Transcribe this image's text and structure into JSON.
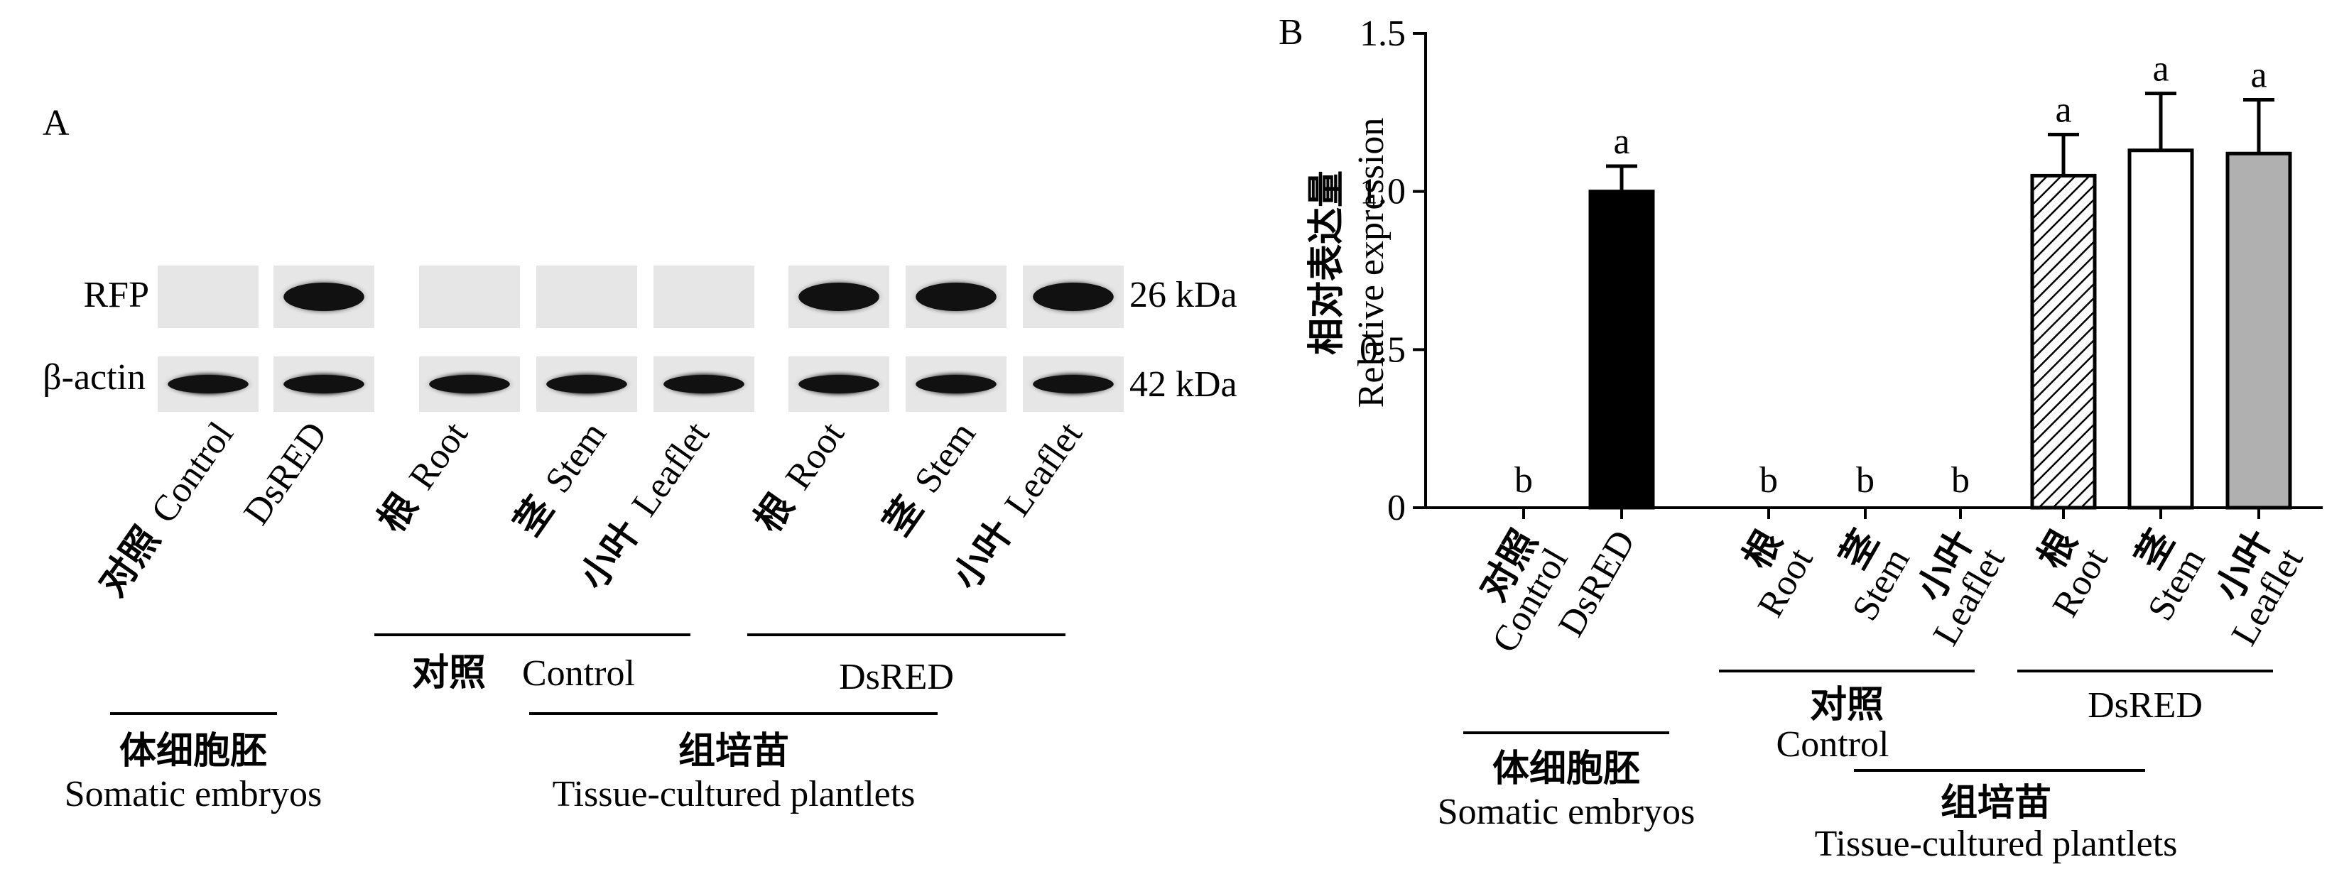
{
  "panel_a": {
    "label": "A",
    "row_labels": [
      "RFP",
      "β-actin"
    ],
    "kda_labels": [
      "26 kDa",
      "42 kDa"
    ],
    "lane_labels": [
      [
        "对照",
        "Control"
      ],
      [
        "DsRED"
      ],
      [
        "根",
        "Root"
      ],
      [
        "茎",
        "Stem"
      ],
      [
        "小叶",
        "Leaflet"
      ],
      [
        "根",
        "Root"
      ],
      [
        "茎",
        "Stem"
      ],
      [
        "小叶",
        "Leaflet"
      ]
    ],
    "band_intensity": {
      "RFP": [
        0,
        1,
        0,
        0,
        0,
        1,
        1,
        1
      ],
      "actin": [
        1,
        1,
        1,
        1,
        1,
        1,
        1,
        1
      ]
    },
    "group_control_cn": "对照",
    "group_control_en": "Control",
    "group_dsred": "DsRED",
    "somatic_cn": "体细胞胚",
    "somatic_en": "Somatic embryos",
    "tissue_cn": "组培苗",
    "tissue_en": "Tissue-cultured plantlets"
  },
  "panel_b": {
    "label": "B",
    "group_control_cn": "对照",
    "group_control_en": "Control",
    "group_dsred": "DsRED",
    "somatic_cn": "体细胞胚",
    "somatic_en": "Somatic embryos",
    "tissue_cn": "组培苗",
    "tissue_en": "Tissue-cultured plantlets"
  },
  "chart_data": {
    "type": "bar",
    "ylabel_cn": "相对表达量",
    "ylabel_en": "Relative expression",
    "ylim": [
      0,
      1.5
    ],
    "yticks": [
      "0",
      "0.5",
      "1.0",
      "1.5"
    ],
    "yticks_values": [
      0,
      0.5,
      1.0,
      1.5
    ],
    "categories": [
      [
        "对照",
        "Control"
      ],
      [
        "DsRED"
      ],
      [
        "根",
        "Root"
      ],
      [
        "茎",
        "Stem"
      ],
      [
        "小叶",
        "Leaflet"
      ],
      [
        "根",
        "Root"
      ],
      [
        "茎",
        "Stem"
      ],
      [
        "小叶",
        "Leaflet"
      ]
    ],
    "values": [
      0,
      1.0,
      0,
      0,
      0,
      1.05,
      1.13,
      1.12
    ],
    "errors": [
      0,
      0.08,
      0,
      0,
      0,
      0.13,
      0.18,
      0.17
    ],
    "significance": [
      "b",
      "a",
      "b",
      "b",
      "b",
      "a",
      "a",
      "a"
    ],
    "fills": [
      "none",
      "#000000",
      "none",
      "none",
      "none",
      "hatch",
      "#ffffff",
      "#b0b0b0"
    ]
  }
}
